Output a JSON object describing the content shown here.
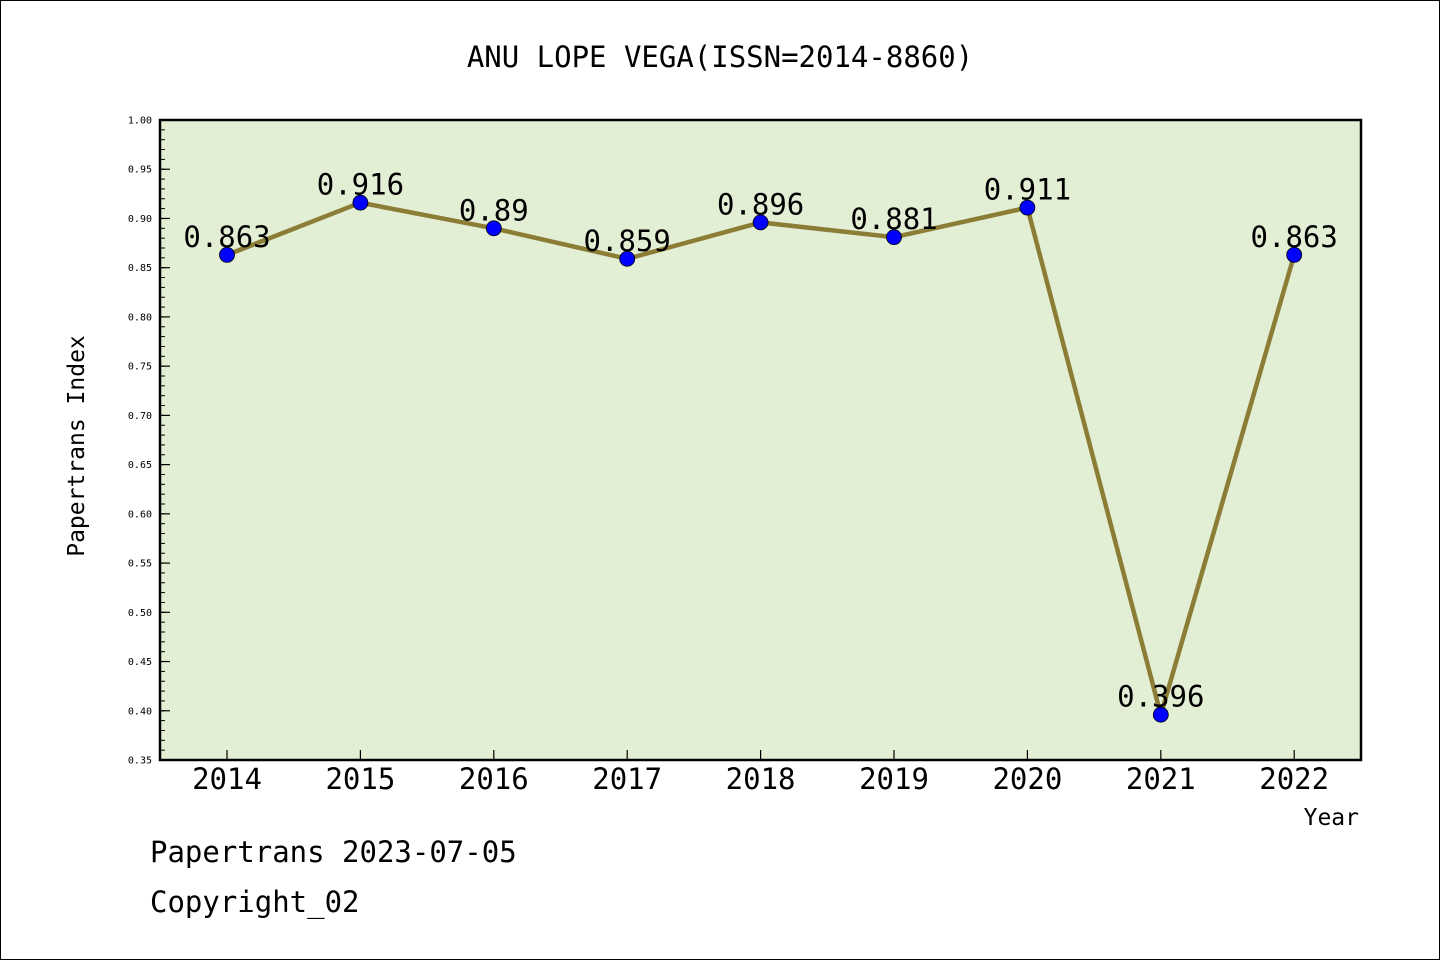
{
  "chart_data": {
    "type": "line",
    "title": "ANU LOPE VEGA(ISSN=2014-8860)",
    "xlabel": "Year",
    "ylabel": "Papertrans Index",
    "x": [
      "2014",
      "2015",
      "2016",
      "2017",
      "2018",
      "2019",
      "2020",
      "2021",
      "2022"
    ],
    "values": [
      0.863,
      0.916,
      0.89,
      0.859,
      0.896,
      0.881,
      0.911,
      0.396,
      0.863
    ],
    "data_labels": [
      "0.863",
      "0.916",
      "0.89",
      "0.859",
      "0.896",
      "0.881",
      "0.911",
      "0.396",
      "0.863"
    ],
    "ylim": [
      0.35,
      1.0
    ],
    "yticks": [
      "0.35",
      "0.40",
      "0.45",
      "0.50",
      "0.55",
      "0.60",
      "0.65",
      "0.70",
      "0.75",
      "0.80",
      "0.85",
      "0.90",
      "0.95",
      "1.00"
    ],
    "grid": false,
    "colors": {
      "plot_background": "#e2efd5",
      "line": "#8b7d35",
      "marker": "#0000ff"
    }
  },
  "footer": {
    "line1": "Papertrans 2023-07-05",
    "line2": "Copyright_02"
  }
}
